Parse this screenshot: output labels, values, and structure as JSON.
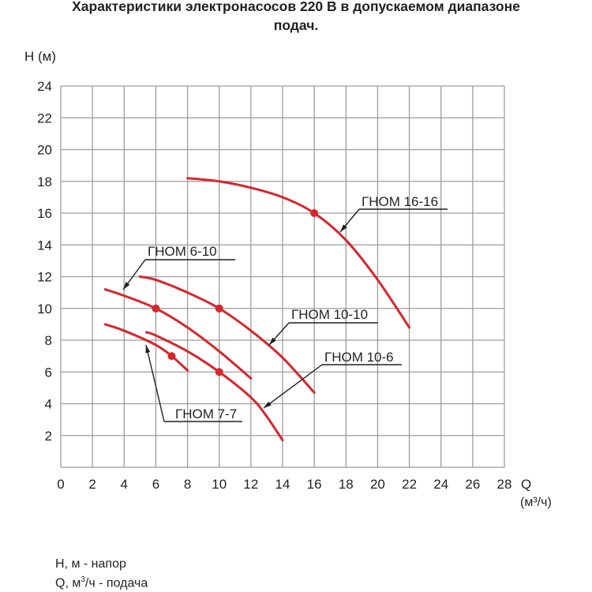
{
  "chart_data": {
    "type": "line",
    "title": "Характеристики электронасосов 220 В в допускаемом диапазоне подач.",
    "title_line1": "Характеристики электронасосов 220 В в допускаемом диапазоне",
    "title_line2": "подач.",
    "xlabel": "Q",
    "xlabel_unit": "(м³/ч)",
    "ylabel": "H (м)",
    "xlim": [
      0,
      28
    ],
    "ylim": [
      0,
      24
    ],
    "xticks": [
      0,
      2,
      4,
      6,
      8,
      10,
      12,
      14,
      16,
      18,
      20,
      22,
      24,
      26,
      28
    ],
    "yticks": [
      2,
      4,
      6,
      8,
      10,
      12,
      14,
      16,
      18,
      20,
      22,
      24
    ],
    "grid": true,
    "line_color": "#d7262e",
    "series": [
      {
        "name": "ГНОМ 16-16",
        "x": [
          8,
          10,
          12,
          14,
          16,
          18,
          20,
          22
        ],
        "y": [
          18.2,
          18.0,
          17.6,
          17.0,
          16.0,
          14.3,
          11.8,
          8.8
        ],
        "marker": {
          "x": 16,
          "y": 16
        }
      },
      {
        "name": "ГНОМ 6-10",
        "x": [
          2.8,
          4,
          6,
          8,
          10,
          12
        ],
        "y": [
          11.2,
          10.8,
          10.0,
          8.8,
          7.3,
          5.6
        ],
        "marker": {
          "x": 6,
          "y": 10
        }
      },
      {
        "name": "ГНОМ 10-10",
        "x": [
          5,
          6,
          8,
          10,
          12,
          14,
          16
        ],
        "y": [
          12.0,
          11.8,
          11.0,
          10.0,
          8.6,
          6.9,
          4.7
        ],
        "marker": {
          "x": 10,
          "y": 10
        }
      },
      {
        "name": "ГНОМ 7-7",
        "x": [
          2.8,
          4,
          6,
          7,
          8
        ],
        "y": [
          9.0,
          8.6,
          7.7,
          7.0,
          6.1
        ],
        "marker": {
          "x": 7,
          "y": 7
        }
      },
      {
        "name": "ГНОМ 10-6",
        "x": [
          5.4,
          6,
          8,
          10,
          12,
          13,
          14
        ],
        "y": [
          8.5,
          8.3,
          7.3,
          6.0,
          4.4,
          3.2,
          1.7
        ],
        "marker": {
          "x": 10,
          "y": 6
        }
      }
    ],
    "annotations": [
      {
        "text": "ГНОМ 16-16",
        "points_to": "ГНОМ 16-16"
      },
      {
        "text": "ГНОМ 6-10",
        "points_to": "ГНОМ 6-10"
      },
      {
        "text": "ГНОМ 10-10",
        "points_to": "ГНОМ 10-10"
      },
      {
        "text": "ГНОМ 10-6",
        "points_to": "ГНОМ 10-6"
      },
      {
        "text": "ГНОМ 7-7",
        "points_to": "ГНОМ 7-7"
      }
    ]
  },
  "legend_notes": {
    "h": "H, м - напор",
    "q_prefix": "Q, м",
    "q_sup": "3",
    "q_suffix": "/ч - подача"
  }
}
